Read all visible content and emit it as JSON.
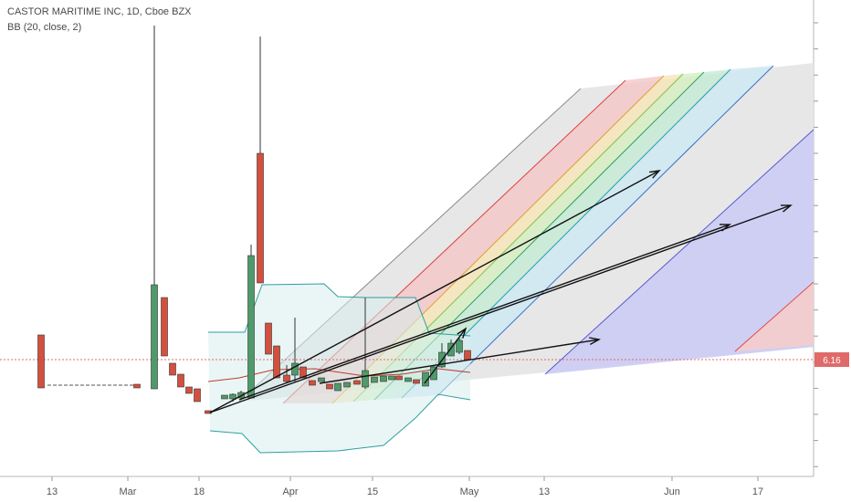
{
  "chart_data": {
    "type": "candlestick",
    "title": "CASTOR MARITIME INC, 1D, Cboe BZX",
    "indicator": "BB (20, close, 2)",
    "last_price_label": "6.16",
    "x_axis": {
      "tick_labels": [
        "13",
        "Mar",
        "18",
        "Apr",
        "15",
        "May",
        "13",
        "Jun",
        "17"
      ]
    },
    "colors": {
      "up": "#4f9a6a",
      "down": "#d3503f",
      "bands": "#2e9f9f",
      "last_price": "#e06a6a",
      "arrows": "#111111"
    }
  }
}
